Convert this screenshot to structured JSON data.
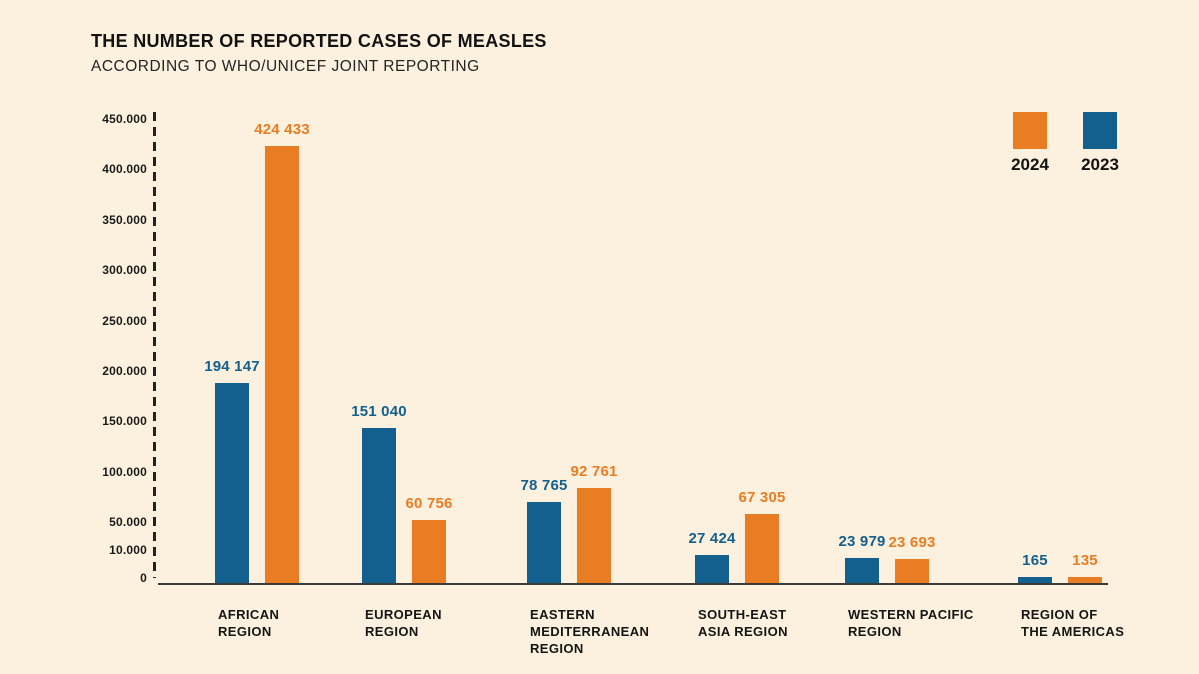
{
  "title": "THE NUMBER OF REPORTED CASES OF MEASLES",
  "subtitle": "ACCORDING TO WHO/UNICEF JOINT REPORTING",
  "colors": {
    "background": "#FBF1DE",
    "bar_2024": "#E87D23",
    "bar_2023": "#135F8D",
    "text": "#1A1A1A",
    "axis": "#2E2E2E"
  },
  "legend": [
    {
      "label": "2024",
      "color": "#E87D23"
    },
    {
      "label": "2023",
      "color": "#135F8D"
    }
  ],
  "chart_data": {
    "type": "bar",
    "title": "THE NUMBER OF REPORTED CASES OF MEASLES",
    "subtitle": "ACCORDING TO WHO/UNICEF JOINT REPORTING",
    "categories": [
      "AFRICAN REGION",
      "EUROPEAN REGION",
      "EASTERN MEDITERRANEAN REGION",
      "SOUTH-EAST ASIA REGION",
      "WESTERN PACIFIC REGION",
      "REGION OF THE AMERICAS"
    ],
    "category_lines": [
      [
        "AFRICAN",
        "REGION"
      ],
      [
        "EUROPEAN",
        "REGION"
      ],
      [
        "EASTERN",
        "MEDITERRANEAN",
        "REGION"
      ],
      [
        "SOUTH-EAST",
        "ASIA REGION"
      ],
      [
        "WESTERN PACIFIC",
        "REGION"
      ],
      [
        "REGION OF",
        "THE AMERICAS"
      ]
    ],
    "series": [
      {
        "name": "2023",
        "color": "#135F8D",
        "values": [
          194147,
          151040,
          78765,
          27424,
          23979,
          165
        ],
        "labels": [
          "194 147",
          "151 040",
          "78 765",
          "27 424",
          "23 979",
          "165"
        ]
      },
      {
        "name": "2024",
        "color": "#E87D23",
        "values": [
          424433,
          60756,
          92761,
          67305,
          23693,
          135
        ],
        "labels": [
          "424 433",
          "60 756",
          "92 761",
          "67 305",
          "23 693",
          "135"
        ]
      }
    ],
    "y_ticks": [
      "450.000",
      "400.000",
      "350.000",
      "300.000",
      "250.000",
      "200.000",
      "150.000",
      "100.000",
      "50.000",
      "10.000",
      "0"
    ],
    "ylim": [
      0,
      450000
    ],
    "xlabel": "",
    "ylabel": "",
    "grid": false,
    "legend_position": "top-right",
    "value_label_format": "space-separated"
  }
}
